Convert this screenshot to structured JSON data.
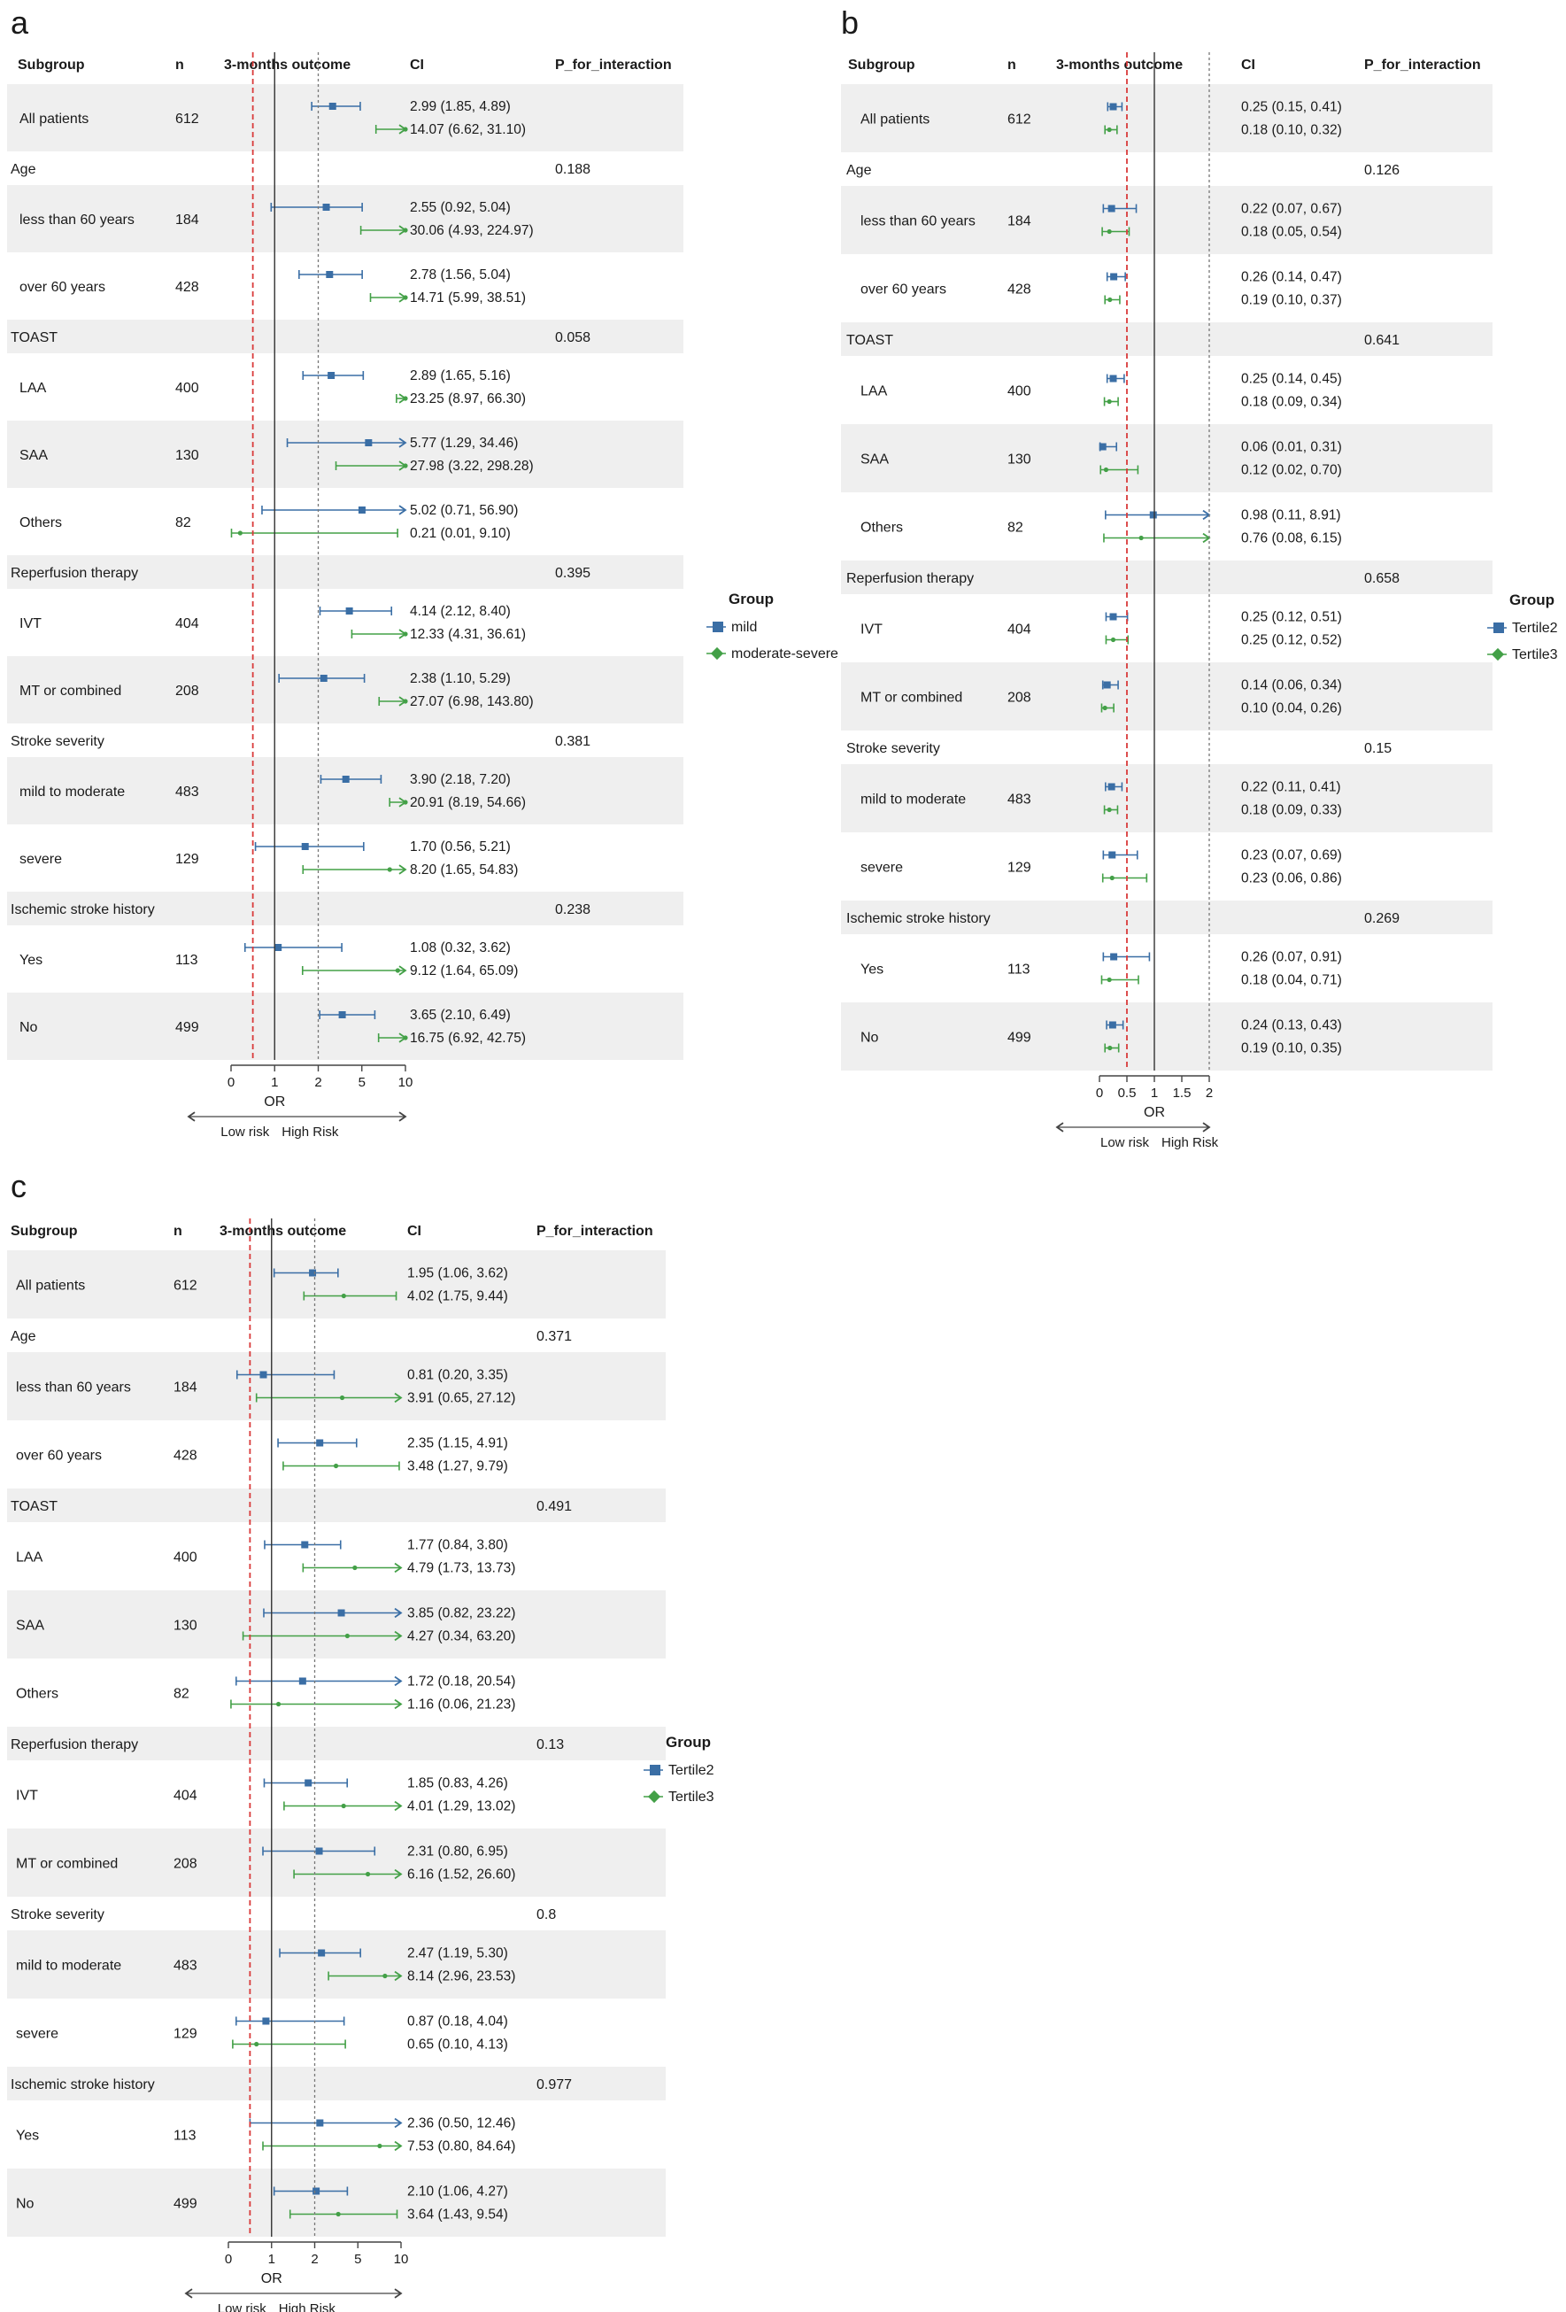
{
  "headers": {
    "subgroup": "Subgroup",
    "n": "n",
    "outcome": "3-months outcome",
    "ci": "CI",
    "p": "P_for_interaction"
  },
  "axis": {
    "label": "OR",
    "low": "Low risk",
    "high": "High Risk"
  },
  "legend_title": "Group",
  "colors": {
    "series1": "#3a6ea5",
    "series2": "#43a047",
    "stripe": "#efefef",
    "ref_red": "#d93a3a",
    "axis": "#444444"
  },
  "chart_data": [
    {
      "panel": "a",
      "type": "forest",
      "xticks": [
        0,
        1,
        2,
        5,
        10
      ],
      "xlim": [
        0,
        10
      ],
      "reference_lines": [
        0.5,
        1,
        2
      ],
      "series_names": [
        "mild",
        "moderate-severe"
      ],
      "rows": [
        {
          "kind": "sub",
          "label": "All patients",
          "n": "612",
          "s1": {
            "or": 2.99,
            "lo": 1.85,
            "hi": 4.89,
            "ci": "2.99 (1.85, 4.89)"
          },
          "s2": {
            "or": 14.07,
            "lo": 6.62,
            "hi": 31.1,
            "ci": "14.07 (6.62, 31.10)"
          }
        },
        {
          "kind": "cat",
          "label": "Age",
          "p": "0.188"
        },
        {
          "kind": "sub",
          "label": "less than 60 years",
          "n": "184",
          "s1": {
            "or": 2.55,
            "lo": 0.92,
            "hi": 5.04,
            "ci": "2.55 (0.92, 5.04)"
          },
          "s2": {
            "or": 30.06,
            "lo": 4.93,
            "hi": 224.97,
            "ci": "30.06 (4.93, 224.97)"
          }
        },
        {
          "kind": "sub",
          "label": "over 60 years",
          "n": "428",
          "s1": {
            "or": 2.78,
            "lo": 1.56,
            "hi": 5.04,
            "ci": "2.78 (1.56, 5.04)"
          },
          "s2": {
            "or": 14.71,
            "lo": 5.99,
            "hi": 38.51,
            "ci": "14.71 (5.99, 38.51)"
          }
        },
        {
          "kind": "cat",
          "label": "TOAST",
          "p": "0.058"
        },
        {
          "kind": "sub",
          "label": "LAA",
          "n": "400",
          "s1": {
            "or": 2.89,
            "lo": 1.65,
            "hi": 5.16,
            "ci": "2.89 (1.65, 5.16)"
          },
          "s2": {
            "or": 23.25,
            "lo": 8.97,
            "hi": 66.3,
            "ci": "23.25 (8.97, 66.30)"
          }
        },
        {
          "kind": "sub",
          "label": "SAA",
          "n": "130",
          "s1": {
            "or": 5.77,
            "lo": 1.29,
            "hi": 34.46,
            "ci": "5.77 (1.29, 34.46)"
          },
          "s2": {
            "or": 27.98,
            "lo": 3.22,
            "hi": 298.28,
            "ci": "27.98 (3.22, 298.28)"
          }
        },
        {
          "kind": "sub",
          "label": "Others",
          "n": "82",
          "s1": {
            "or": 5.02,
            "lo": 0.71,
            "hi": 56.9,
            "ci": "5.02 (0.71, 56.90)"
          },
          "s2": {
            "or": 0.21,
            "lo": 0.01,
            "hi": 9.1,
            "ci": "0.21 (0.01, 9.10)"
          }
        },
        {
          "kind": "cat",
          "label": "Reperfusion therapy",
          "p": "0.395"
        },
        {
          "kind": "sub",
          "label": "IVT",
          "n": "404",
          "s1": {
            "or": 4.14,
            "lo": 2.12,
            "hi": 8.4,
            "ci": "4.14 (2.12, 8.40)"
          },
          "s2": {
            "or": 12.33,
            "lo": 4.31,
            "hi": 36.61,
            "ci": "12.33 (4.31, 36.61)"
          }
        },
        {
          "kind": "sub",
          "label": "MT or combined",
          "n": "208",
          "s1": {
            "or": 2.38,
            "lo": 1.1,
            "hi": 5.29,
            "ci": "2.38 (1.10, 5.29)"
          },
          "s2": {
            "or": 27.07,
            "lo": 6.98,
            "hi": 143.8,
            "ci": "27.07 (6.98, 143.80)"
          }
        },
        {
          "kind": "cat",
          "label": "Stroke severity",
          "p": "0.381"
        },
        {
          "kind": "sub",
          "label": "mild to moderate",
          "n": "483",
          "s1": {
            "or": 3.9,
            "lo": 2.18,
            "hi": 7.2,
            "ci": "3.90 (2.18, 7.20)"
          },
          "s2": {
            "or": 20.91,
            "lo": 8.19,
            "hi": 54.66,
            "ci": "20.91 (8.19, 54.66)"
          }
        },
        {
          "kind": "sub",
          "label": "severe",
          "n": "129",
          "s1": {
            "or": 1.7,
            "lo": 0.56,
            "hi": 5.21,
            "ci": "1.70 (0.56, 5.21)"
          },
          "s2": {
            "or": 8.2,
            "lo": 1.65,
            "hi": 54.83,
            "ci": "8.20 (1.65, 54.83)"
          }
        },
        {
          "kind": "cat",
          "label": "Ischemic stroke history",
          "p": "0.238"
        },
        {
          "kind": "sub",
          "label": "Yes",
          "n": "113",
          "s1": {
            "or": 1.08,
            "lo": 0.32,
            "hi": 3.62,
            "ci": "1.08 (0.32, 3.62)"
          },
          "s2": {
            "or": 9.12,
            "lo": 1.64,
            "hi": 65.09,
            "ci": "9.12 (1.64, 65.09)"
          }
        },
        {
          "kind": "sub",
          "label": "No",
          "n": "499",
          "s1": {
            "or": 3.65,
            "lo": 2.1,
            "hi": 6.49,
            "ci": "3.65 (2.10, 6.49)"
          },
          "s2": {
            "or": 16.75,
            "lo": 6.92,
            "hi": 42.75,
            "ci": "16.75 (6.92, 42.75)"
          }
        }
      ]
    },
    {
      "panel": "b",
      "type": "forest",
      "xticks": [
        0,
        0.5,
        1,
        1.5,
        2
      ],
      "xlim": [
        0,
        2
      ],
      "reference_lines": [
        0.5,
        1,
        2
      ],
      "series_names": [
        "Tertile2",
        "Tertile3"
      ],
      "rows": [
        {
          "kind": "sub",
          "label": "All patients",
          "n": "612",
          "s1": {
            "or": 0.25,
            "lo": 0.15,
            "hi": 0.41,
            "ci": "0.25 (0.15, 0.41)"
          },
          "s2": {
            "or": 0.18,
            "lo": 0.1,
            "hi": 0.32,
            "ci": "0.18 (0.10, 0.32)"
          }
        },
        {
          "kind": "cat",
          "label": "Age",
          "p": "0.126"
        },
        {
          "kind": "sub",
          "label": "less than 60 years",
          "n": "184",
          "s1": {
            "or": 0.22,
            "lo": 0.07,
            "hi": 0.67,
            "ci": "0.22 (0.07, 0.67)"
          },
          "s2": {
            "or": 0.18,
            "lo": 0.05,
            "hi": 0.54,
            "ci": "0.18 (0.05, 0.54)"
          }
        },
        {
          "kind": "sub",
          "label": "over 60 years",
          "n": "428",
          "s1": {
            "or": 0.26,
            "lo": 0.14,
            "hi": 0.47,
            "ci": "0.26 (0.14, 0.47)"
          },
          "s2": {
            "or": 0.19,
            "lo": 0.1,
            "hi": 0.37,
            "ci": "0.19 (0.10, 0.37)"
          }
        },
        {
          "kind": "cat",
          "label": "TOAST",
          "p": "0.641"
        },
        {
          "kind": "sub",
          "label": "LAA",
          "n": "400",
          "s1": {
            "or": 0.25,
            "lo": 0.14,
            "hi": 0.45,
            "ci": "0.25 (0.14, 0.45)"
          },
          "s2": {
            "or": 0.18,
            "lo": 0.09,
            "hi": 0.34,
            "ci": "0.18 (0.09, 0.34)"
          }
        },
        {
          "kind": "sub",
          "label": "SAA",
          "n": "130",
          "s1": {
            "or": 0.06,
            "lo": 0.01,
            "hi": 0.31,
            "ci": "0.06 (0.01, 0.31)"
          },
          "s2": {
            "or": 0.12,
            "lo": 0.02,
            "hi": 0.7,
            "ci": "0.12 (0.02, 0.70)"
          }
        },
        {
          "kind": "sub",
          "label": "Others",
          "n": "82",
          "s1": {
            "or": 0.98,
            "lo": 0.11,
            "hi": 8.91,
            "ci": "0.98 (0.11, 8.91)"
          },
          "s2": {
            "or": 0.76,
            "lo": 0.08,
            "hi": 6.15,
            "ci": "0.76 (0.08, 6.15)"
          }
        },
        {
          "kind": "cat",
          "label": "Reperfusion therapy",
          "p": "0.658"
        },
        {
          "kind": "sub",
          "label": "IVT",
          "n": "404",
          "s1": {
            "or": 0.25,
            "lo": 0.12,
            "hi": 0.51,
            "ci": "0.25 (0.12, 0.51)"
          },
          "s2": {
            "or": 0.25,
            "lo": 0.12,
            "hi": 0.52,
            "ci": "0.25 (0.12, 0.52)"
          }
        },
        {
          "kind": "sub",
          "label": "MT or combined",
          "n": "208",
          "s1": {
            "or": 0.14,
            "lo": 0.06,
            "hi": 0.34,
            "ci": "0.14 (0.06, 0.34)"
          },
          "s2": {
            "or": 0.1,
            "lo": 0.04,
            "hi": 0.26,
            "ci": "0.10 (0.04, 0.26)"
          }
        },
        {
          "kind": "cat",
          "label": "Stroke severity",
          "p": "0.15"
        },
        {
          "kind": "sub",
          "label": "mild to moderate",
          "n": "483",
          "s1": {
            "or": 0.22,
            "lo": 0.11,
            "hi": 0.41,
            "ci": "0.22 (0.11, 0.41)"
          },
          "s2": {
            "or": 0.18,
            "lo": 0.09,
            "hi": 0.33,
            "ci": "0.18 (0.09, 0.33)"
          }
        },
        {
          "kind": "sub",
          "label": "severe",
          "n": "129",
          "s1": {
            "or": 0.23,
            "lo": 0.07,
            "hi": 0.69,
            "ci": "0.23 (0.07, 0.69)"
          },
          "s2": {
            "or": 0.23,
            "lo": 0.06,
            "hi": 0.86,
            "ci": "0.23 (0.06, 0.86)"
          }
        },
        {
          "kind": "cat",
          "label": "Ischemic stroke history",
          "p": "0.269"
        },
        {
          "kind": "sub",
          "label": "Yes",
          "n": "113",
          "s1": {
            "or": 0.26,
            "lo": 0.07,
            "hi": 0.91,
            "ci": "0.26 (0.07, 0.91)"
          },
          "s2": {
            "or": 0.18,
            "lo": 0.04,
            "hi": 0.71,
            "ci": "0.18 (0.04, 0.71)"
          }
        },
        {
          "kind": "sub",
          "label": "No",
          "n": "499",
          "s1": {
            "or": 0.24,
            "lo": 0.13,
            "hi": 0.43,
            "ci": "0.24 (0.13, 0.43)"
          },
          "s2": {
            "or": 0.19,
            "lo": 0.1,
            "hi": 0.35,
            "ci": "0.19 (0.10, 0.35)"
          }
        }
      ]
    },
    {
      "panel": "c",
      "type": "forest",
      "xticks": [
        0,
        1,
        2,
        5,
        10
      ],
      "xlim": [
        0,
        10
      ],
      "reference_lines": [
        0.5,
        1,
        2
      ],
      "series_names": [
        "Tertile2",
        "Tertile3"
      ],
      "rows": [
        {
          "kind": "sub",
          "label": "All patients",
          "n": "612",
          "s1": {
            "or": 1.95,
            "lo": 1.06,
            "hi": 3.62,
            "ci": "1.95 (1.06, 3.62)"
          },
          "s2": {
            "or": 4.02,
            "lo": 1.75,
            "hi": 9.44,
            "ci": "4.02 (1.75, 9.44)"
          }
        },
        {
          "kind": "cat",
          "label": "Age",
          "p": "0.371"
        },
        {
          "kind": "sub",
          "label": "less than 60 years",
          "n": "184",
          "s1": {
            "or": 0.81,
            "lo": 0.2,
            "hi": 3.35,
            "ci": "0.81 (0.20, 3.35)"
          },
          "s2": {
            "or": 3.91,
            "lo": 0.65,
            "hi": 27.12,
            "ci": "3.91 (0.65, 27.12)"
          }
        },
        {
          "kind": "sub",
          "label": "over 60 years",
          "n": "428",
          "s1": {
            "or": 2.35,
            "lo": 1.15,
            "hi": 4.91,
            "ci": "2.35 (1.15, 4.91)"
          },
          "s2": {
            "or": 3.48,
            "lo": 1.27,
            "hi": 9.79,
            "ci": "3.48 (1.27, 9.79)"
          }
        },
        {
          "kind": "cat",
          "label": "TOAST",
          "p": "0.491"
        },
        {
          "kind": "sub",
          "label": "LAA",
          "n": "400",
          "s1": {
            "or": 1.77,
            "lo": 0.84,
            "hi": 3.8,
            "ci": "1.77 (0.84, 3.80)"
          },
          "s2": {
            "or": 4.79,
            "lo": 1.73,
            "hi": 13.73,
            "ci": "4.79 (1.73, 13.73)"
          }
        },
        {
          "kind": "sub",
          "label": "SAA",
          "n": "130",
          "s1": {
            "or": 3.85,
            "lo": 0.82,
            "hi": 23.22,
            "ci": "3.85 (0.82, 23.22)"
          },
          "s2": {
            "or": 4.27,
            "lo": 0.34,
            "hi": 63.2,
            "ci": "4.27 (0.34, 63.20)"
          }
        },
        {
          "kind": "sub",
          "label": "Others",
          "n": "82",
          "s1": {
            "or": 1.72,
            "lo": 0.18,
            "hi": 20.54,
            "ci": "1.72 (0.18, 20.54)"
          },
          "s2": {
            "or": 1.16,
            "lo": 0.06,
            "hi": 21.23,
            "ci": "1.16 (0.06, 21.23)"
          }
        },
        {
          "kind": "cat",
          "label": "Reperfusion therapy",
          "p": "0.13"
        },
        {
          "kind": "sub",
          "label": "IVT",
          "n": "404",
          "s1": {
            "or": 1.85,
            "lo": 0.83,
            "hi": 4.26,
            "ci": "1.85 (0.83, 4.26)"
          },
          "s2": {
            "or": 4.01,
            "lo": 1.29,
            "hi": 13.02,
            "ci": "4.01 (1.29, 13.02)"
          }
        },
        {
          "kind": "sub",
          "label": "MT or combined",
          "n": "208",
          "s1": {
            "or": 2.31,
            "lo": 0.8,
            "hi": 6.95,
            "ci": "2.31 (0.80, 6.95)"
          },
          "s2": {
            "or": 6.16,
            "lo": 1.52,
            "hi": 26.6,
            "ci": "6.16 (1.52, 26.60)"
          }
        },
        {
          "kind": "cat",
          "label": "Stroke severity",
          "p": "0.8"
        },
        {
          "kind": "sub",
          "label": "mild to moderate",
          "n": "483",
          "s1": {
            "or": 2.47,
            "lo": 1.19,
            "hi": 5.3,
            "ci": "2.47 (1.19, 5.30)"
          },
          "s2": {
            "or": 8.14,
            "lo": 2.96,
            "hi": 23.53,
            "ci": "8.14 (2.96, 23.53)"
          }
        },
        {
          "kind": "sub",
          "label": "severe",
          "n": "129",
          "s1": {
            "or": 0.87,
            "lo": 0.18,
            "hi": 4.04,
            "ci": "0.87 (0.18, 4.04)"
          },
          "s2": {
            "or": 0.65,
            "lo": 0.1,
            "hi": 4.13,
            "ci": "0.65 (0.10, 4.13)"
          }
        },
        {
          "kind": "cat",
          "label": "Ischemic stroke history",
          "p": "0.977"
        },
        {
          "kind": "sub",
          "label": "Yes",
          "n": "113",
          "s1": {
            "or": 2.36,
            "lo": 0.5,
            "hi": 12.46,
            "ci": "2.36 (0.50, 12.46)"
          },
          "s2": {
            "or": 7.53,
            "lo": 0.8,
            "hi": 84.64,
            "ci": "7.53 (0.80, 84.64)"
          }
        },
        {
          "kind": "sub",
          "label": "No",
          "n": "499",
          "s1": {
            "or": 2.1,
            "lo": 1.06,
            "hi": 4.27,
            "ci": "2.10 (1.06, 4.27)"
          },
          "s2": {
            "or": 3.64,
            "lo": 1.43,
            "hi": 9.54,
            "ci": "3.64 (1.43, 9.54)"
          }
        }
      ]
    }
  ]
}
